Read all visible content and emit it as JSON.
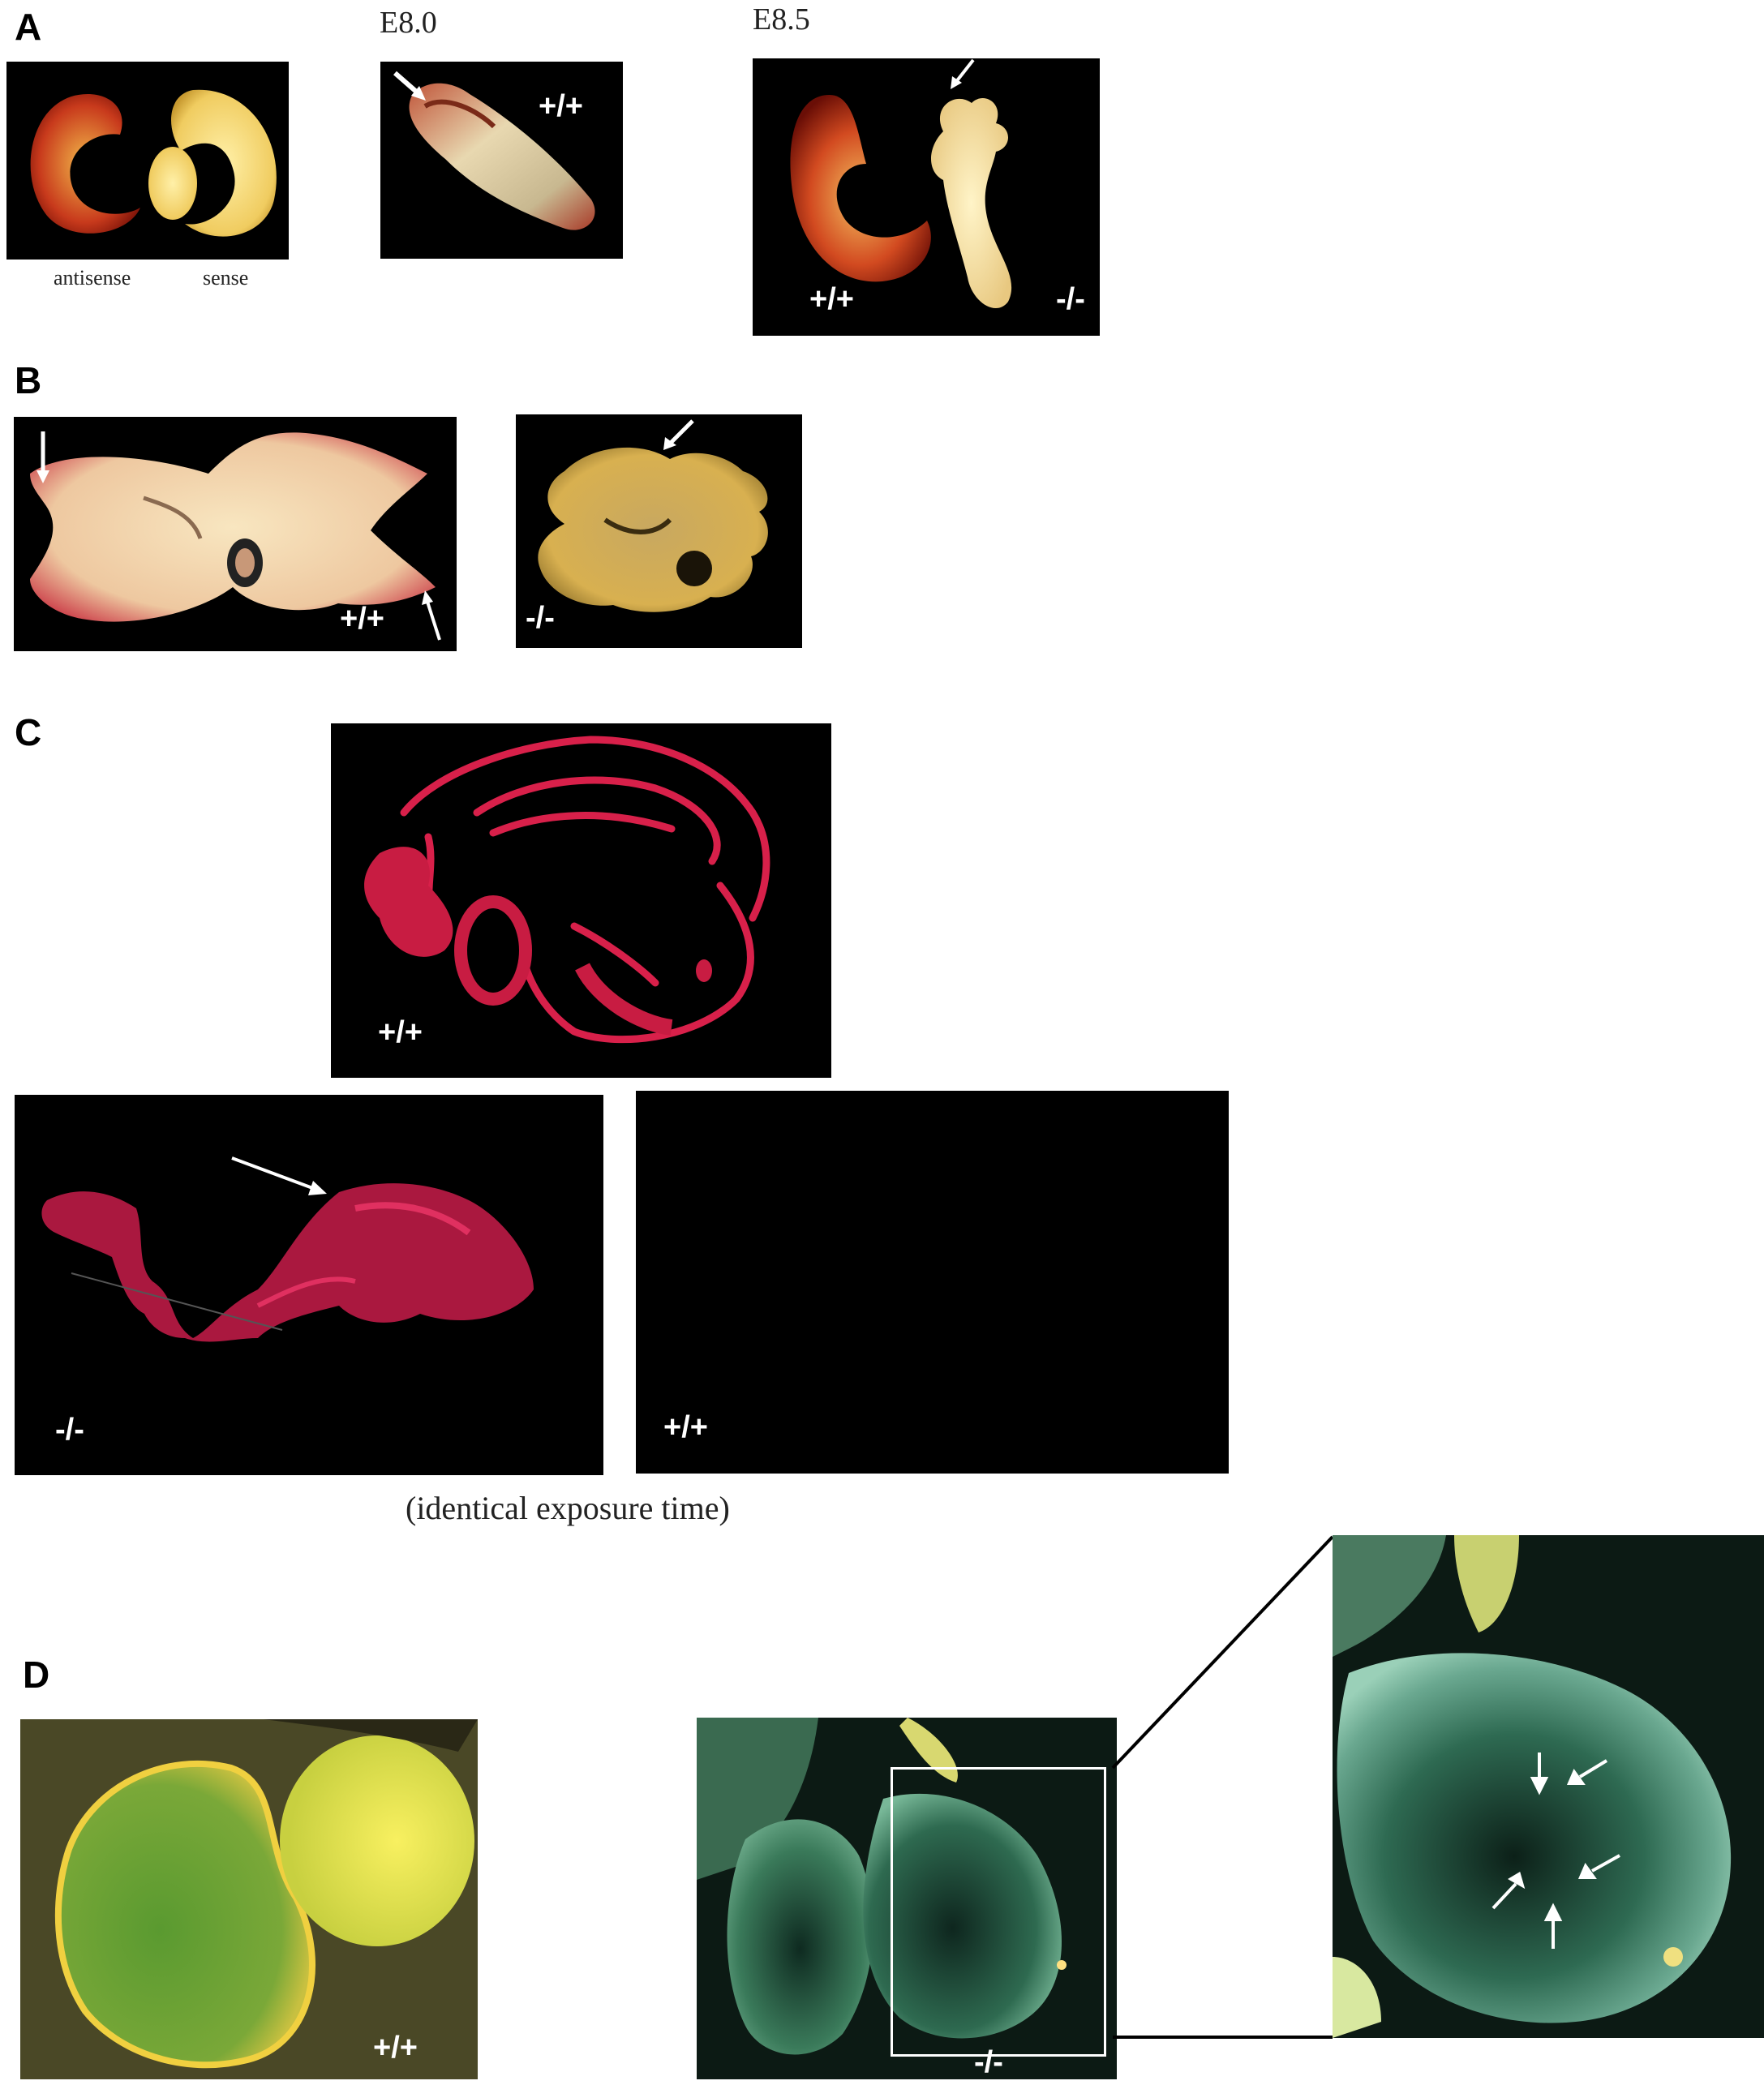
{
  "panelA": {
    "label": "A",
    "stage1": "E8.0",
    "stage2": "E8.5",
    "caption_left": "antisense",
    "caption_right": "sense",
    "img2_genotype": "+/+",
    "img3_genotype_left": "+/+",
    "img3_genotype_right": "-/-"
  },
  "panelB": {
    "label": "B",
    "img1_genotype": "+/+",
    "img2_genotype": "-/-"
  },
  "panelC": {
    "label": "C",
    "top_genotype": "+/+",
    "bottom_left_genotype": "-/-",
    "bottom_right_genotype": "+/+",
    "caption": "(identical exposure time)"
  },
  "panelD": {
    "label": "D",
    "left_genotype": "+/+",
    "middle_genotype": "-/-"
  }
}
